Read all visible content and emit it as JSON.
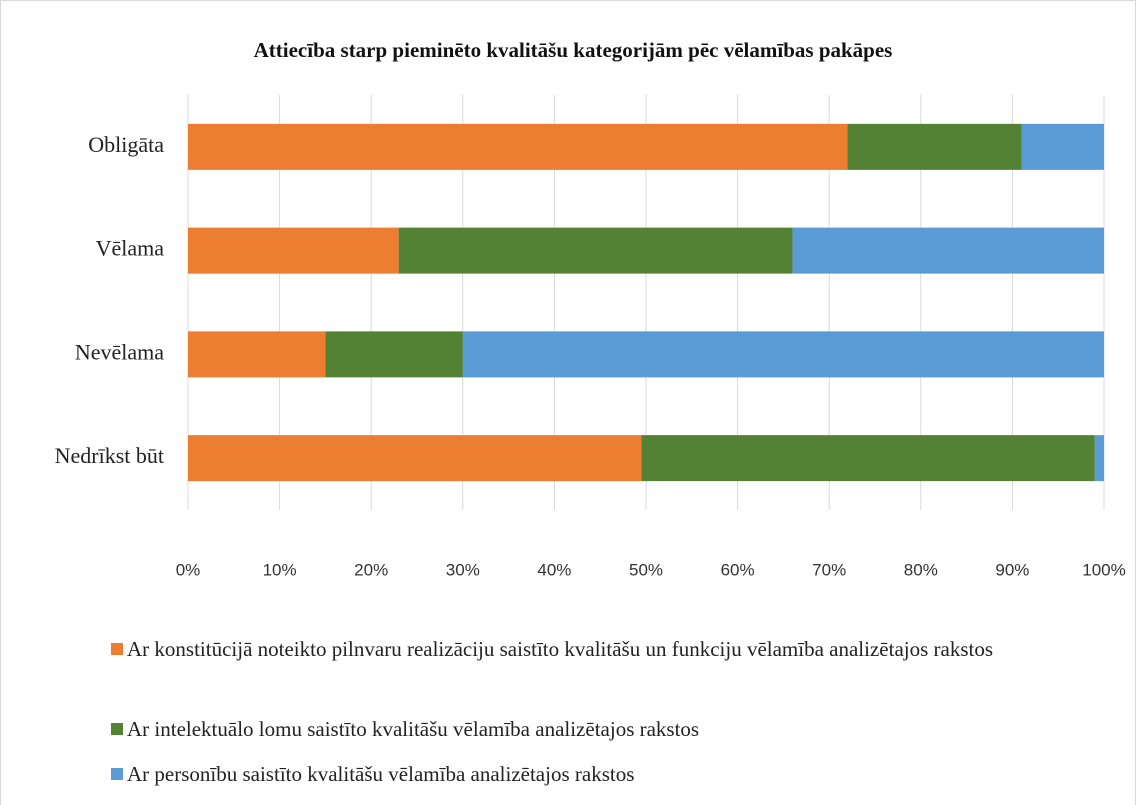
{
  "chart_data": {
    "type": "stacked_bar_horizontal",
    "title": "Attiecība starp pieminēto kvalitāšu kategorijām pēc vēlamības pakāpes",
    "categories": [
      "Obligāta",
      "Vēlama",
      "Nevēlama",
      "Nedrīkst būt"
    ],
    "series": [
      {
        "name": "Ar konstitūcijā noteikto pilnvaru realizāciju saistīto kvalitāšu un funkciju vēlamība analizētajos rakstos",
        "color": "#ed7d31",
        "values": [
          72,
          23,
          15,
          49.5
        ]
      },
      {
        "name": "Ar intelektuālo lomu saistīto kvalitāšu vēlamība analizētajos rakstos",
        "color": "#548235",
        "values": [
          19,
          43,
          15,
          49.5
        ]
      },
      {
        "name": "Ar personību saistīto kvalitāšu vēlamība analizētajos rakstos",
        "color": "#5b9bd5",
        "values": [
          9,
          34,
          70,
          1
        ]
      }
    ],
    "xlim": [
      0,
      100
    ],
    "xticks": [
      {
        "value": 0,
        "label": "0%"
      },
      {
        "value": 10,
        "label": "10%"
      },
      {
        "value": 20,
        "label": "20%"
      },
      {
        "value": 30,
        "label": "30%"
      },
      {
        "value": 40,
        "label": "40%"
      },
      {
        "value": 50,
        "label": "50%"
      },
      {
        "value": 60,
        "label": "60%"
      },
      {
        "value": 70,
        "label": "70%"
      },
      {
        "value": 80,
        "label": "80%"
      },
      {
        "value": 90,
        "label": "90%"
      },
      {
        "value": 100,
        "label": "100%"
      }
    ],
    "grid": true,
    "legend": "bottom"
  }
}
